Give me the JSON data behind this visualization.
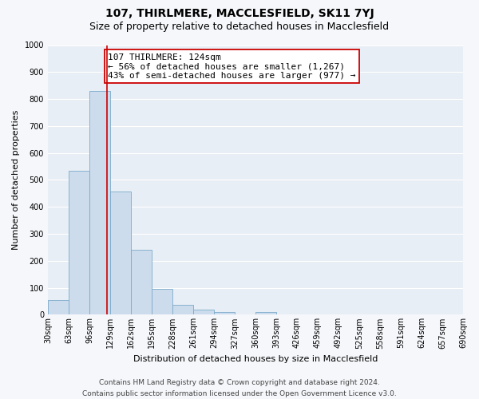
{
  "title": "107, THIRLMERE, MACCLESFIELD, SK11 7YJ",
  "subtitle": "Size of property relative to detached houses in Macclesfield",
  "xlabel": "Distribution of detached houses by size in Macclesfield",
  "ylabel": "Number of detached properties",
  "bar_color": "#cddcec",
  "bar_edgecolor": "#7aaaca",
  "bin_edges": [
    30,
    63,
    96,
    129,
    162,
    195,
    228,
    261,
    294,
    327,
    360,
    393,
    426,
    459,
    492,
    525,
    558,
    591,
    624,
    657,
    690
  ],
  "bar_heights": [
    53,
    533,
    830,
    458,
    240,
    97,
    37,
    20,
    10,
    0,
    10,
    0,
    0,
    0,
    0,
    0,
    0,
    0,
    0,
    0
  ],
  "property_size": 124,
  "vline_color": "#cc0000",
  "annotation_line1": "107 THIRLMERE: 124sqm",
  "annotation_line2": "← 56% of detached houses are smaller (1,267)",
  "annotation_line3": "43% of semi-detached houses are larger (977) →",
  "annotation_box_color": "#ffffff",
  "annotation_box_edgecolor": "#cc0000",
  "ylim": [
    0,
    1000
  ],
  "yticks": [
    0,
    100,
    200,
    300,
    400,
    500,
    600,
    700,
    800,
    900,
    1000
  ],
  "tick_labels": [
    "30sqm",
    "63sqm",
    "96sqm",
    "129sqm",
    "162sqm",
    "195sqm",
    "228sqm",
    "261sqm",
    "294sqm",
    "327sqm",
    "360sqm",
    "393sqm",
    "426sqm",
    "459sqm",
    "492sqm",
    "525sqm",
    "558sqm",
    "591sqm",
    "624sqm",
    "657sqm",
    "690sqm"
  ],
  "footer_text": "Contains HM Land Registry data © Crown copyright and database right 2024.\nContains public sector information licensed under the Open Government Licence v3.0.",
  "plot_bg_color": "#e8eef5",
  "fig_bg_color": "#f5f7fa",
  "grid_color": "#ffffff",
  "title_fontsize": 10,
  "subtitle_fontsize": 9,
  "axis_label_fontsize": 8,
  "tick_fontsize": 7,
  "annotation_fontsize": 8,
  "footer_fontsize": 6.5
}
